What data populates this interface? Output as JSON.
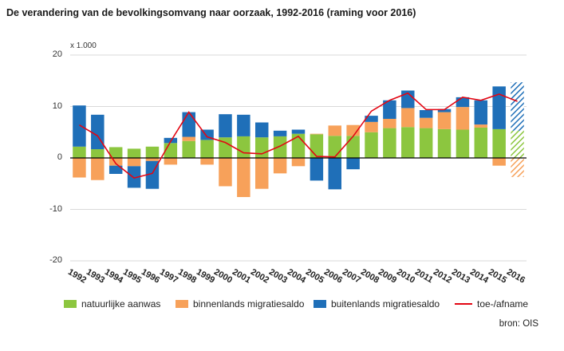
{
  "chart_data": {
    "type": "bar",
    "stacked": true,
    "title": "De verandering van de bevolkingsomvang naar oorzaak, 1992-2016 (raming voor 2016)",
    "unit": "x 1.000",
    "ylim": [
      -20,
      20
    ],
    "yticks": [
      "20",
      "10",
      "0",
      "-10",
      "-20"
    ],
    "ytick_values": [
      20,
      10,
      0,
      -10,
      -20
    ],
    "categories": [
      "1992",
      "1993",
      "1994",
      "1995",
      "1996",
      "1997",
      "1998",
      "1999",
      "2000",
      "2001",
      "2002",
      "2003",
      "2004",
      "2005",
      "2006",
      "2007",
      "2008",
      "2009",
      "2010",
      "2011",
      "2012",
      "2013",
      "2014",
      "2015",
      "2016"
    ],
    "series": [
      {
        "name": "natuurlijke aanwas",
        "color": "#8cc63f",
        "values": [
          2.2,
          1.7,
          2.1,
          1.8,
          2.2,
          2.9,
          3.3,
          3.5,
          4.0,
          4.2,
          4.0,
          4.2,
          4.7,
          4.6,
          4.3,
          4.3,
          5.0,
          5.8,
          6.0,
          5.8,
          5.6,
          5.5,
          5.9,
          5.6,
          5.3
        ]
      },
      {
        "name": "binnenlands migratiesaldo",
        "color": "#f7a15a",
        "values": [
          -3.8,
          -4.3,
          -1.5,
          -1.6,
          -0.6,
          -1.3,
          0.8,
          -1.3,
          -5.5,
          -7.6,
          -6.0,
          -3.0,
          -1.6,
          0.1,
          2.0,
          2.1,
          2.0,
          1.8,
          3.7,
          2.0,
          3.3,
          4.4,
          0.6,
          -1.5,
          -3.7
        ]
      },
      {
        "name": "buitenlands migratiesaldo",
        "color": "#1f6fb8",
        "values": [
          8.0,
          6.7,
          -1.6,
          -4.2,
          -5.4,
          1.0,
          4.8,
          2.0,
          4.5,
          4.2,
          2.9,
          1.1,
          0.8,
          -4.4,
          -6.1,
          -2.2,
          1.2,
          3.6,
          3.4,
          1.5,
          0.6,
          1.9,
          4.7,
          8.3,
          9.4
        ]
      }
    ],
    "line": {
      "name": "toe-/afname",
      "color": "#e30613",
      "values": [
        6.4,
        4.3,
        -1.1,
        -3.9,
        -3.0,
        3.2,
        8.9,
        4.1,
        3.0,
        1.0,
        0.8,
        2.3,
        4.2,
        0.3,
        0.2,
        4.2,
        9.1,
        11.2,
        12.6,
        9.4,
        9.4,
        11.8,
        11.2,
        12.4,
        11.0
      ]
    },
    "hatched_category": "2016",
    "legend_position": "bottom"
  },
  "source": "bron: OIS"
}
